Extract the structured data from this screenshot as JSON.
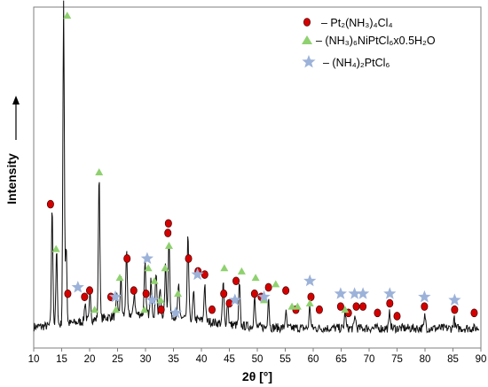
{
  "chart_data": {
    "type": "line",
    "xlabel": "2θ [°]",
    "ylabel": "Intensity",
    "xlim": [
      10,
      90
    ],
    "x_ticks": [
      10,
      15,
      20,
      25,
      30,
      35,
      40,
      45,
      50,
      55,
      60,
      65,
      70,
      75,
      80,
      85,
      90
    ],
    "grid": false,
    "legend_position": "top-right",
    "colors": {
      "line": "#111111",
      "circle_fill": "#d40000",
      "circle_stroke": "#5a0000",
      "triangle": "#8fd16f",
      "star": "#9cb2d9"
    },
    "peaks": [
      {
        "x": 13.3,
        "h": 0.37
      },
      {
        "x": 14.1,
        "h": 0.23
      },
      {
        "x": 15.35,
        "h": 1.0
      },
      {
        "x": 15.8,
        "h": 0.25
      },
      {
        "x": 19.2,
        "h": 0.06
      },
      {
        "x": 20.1,
        "h": 0.09
      },
      {
        "x": 21.7,
        "h": 0.46
      },
      {
        "x": 24.9,
        "h": 0.07
      },
      {
        "x": 25.6,
        "h": 0.12
      },
      {
        "x": 26.6,
        "h": 0.2
      },
      {
        "x": 28.0,
        "h": 0.07
      },
      {
        "x": 29.9,
        "h": 0.17
      },
      {
        "x": 31.0,
        "h": 0.11
      },
      {
        "x": 31.9,
        "h": 0.14
      },
      {
        "x": 32.6,
        "h": 0.08
      },
      {
        "x": 33.6,
        "h": 0.16
      },
      {
        "x": 34.2,
        "h": 0.25
      },
      {
        "x": 35.9,
        "h": 0.1
      },
      {
        "x": 37.6,
        "h": 0.26
      },
      {
        "x": 38.6,
        "h": 0.08
      },
      {
        "x": 40.6,
        "h": 0.12
      },
      {
        "x": 43.9,
        "h": 0.13
      },
      {
        "x": 44.7,
        "h": 0.08
      },
      {
        "x": 46.8,
        "h": 0.13
      },
      {
        "x": 49.5,
        "h": 0.1
      },
      {
        "x": 52.0,
        "h": 0.1
      },
      {
        "x": 55.1,
        "h": 0.05
      },
      {
        "x": 59.4,
        "h": 0.07
      },
      {
        "x": 65.7,
        "h": 0.05
      },
      {
        "x": 67.5,
        "h": 0.04
      },
      {
        "x": 73.7,
        "h": 0.05
      },
      {
        "x": 80.0,
        "h": 0.04
      },
      {
        "x": 85.2,
        "h": 0.03
      }
    ],
    "series": [
      {
        "name": "– Pt₂(NH₃)₄Cl₄",
        "marker": "circle",
        "x": [
          13.0,
          16.1,
          19.1,
          20.0,
          23.8,
          26.7,
          27.9,
          30.1,
          32.8,
          34.0,
          34.1,
          37.7,
          39.4,
          40.6,
          41.9,
          44.0,
          45.0,
          46.2,
          49.5,
          50.7,
          52.0,
          55.1,
          56.9,
          59.6,
          61.1,
          64.9,
          66.3,
          67.7,
          68.9,
          71.5,
          73.7,
          75.0,
          79.9,
          85.3,
          88.8
        ],
        "y": [
          0.4,
          0.12,
          0.11,
          0.13,
          0.11,
          0.23,
          0.13,
          0.12,
          0.07,
          0.31,
          0.34,
          0.23,
          0.19,
          0.18,
          0.07,
          0.12,
          0.09,
          0.16,
          0.12,
          0.11,
          0.14,
          0.13,
          0.07,
          0.11,
          0.07,
          0.08,
          0.06,
          0.08,
          0.08,
          0.06,
          0.09,
          0.05,
          0.08,
          0.07,
          0.06
        ]
      },
      {
        "name": "– (NH₃)₆NiPtCl₆x0.5H₂O",
        "marker": "triangle",
        "x": [
          14.0,
          16.0,
          20.9,
          21.7,
          24.7,
          25.4,
          29.8,
          30.5,
          31.6,
          32.7,
          33.5,
          34.2,
          35.8,
          44.1,
          47.2,
          49.7,
          51.2,
          53.3,
          56.2,
          57.2,
          59.4,
          65.7
        ],
        "y": [
          0.26,
          0.99,
          0.07,
          0.5,
          0.07,
          0.17,
          0.07,
          0.2,
          0.16,
          0.1,
          0.2,
          0.27,
          0.12,
          0.2,
          0.19,
          0.17,
          0.1,
          0.15,
          0.08,
          0.08,
          0.09,
          0.07
        ]
      },
      {
        "name": "– (NH₄)₂PtCl₆",
        "marker": "star",
        "x": [
          17.9,
          24.6,
          30.3,
          31.2,
          35.4,
          39.3,
          46.0,
          51.2,
          59.4,
          64.9,
          67.4,
          68.9,
          73.7,
          79.9,
          85.3
        ],
        "y": [
          0.14,
          0.11,
          0.23,
          0.1,
          0.06,
          0.18,
          0.1,
          0.11,
          0.16,
          0.12,
          0.12,
          0.12,
          0.12,
          0.11,
          0.1
        ]
      }
    ]
  }
}
